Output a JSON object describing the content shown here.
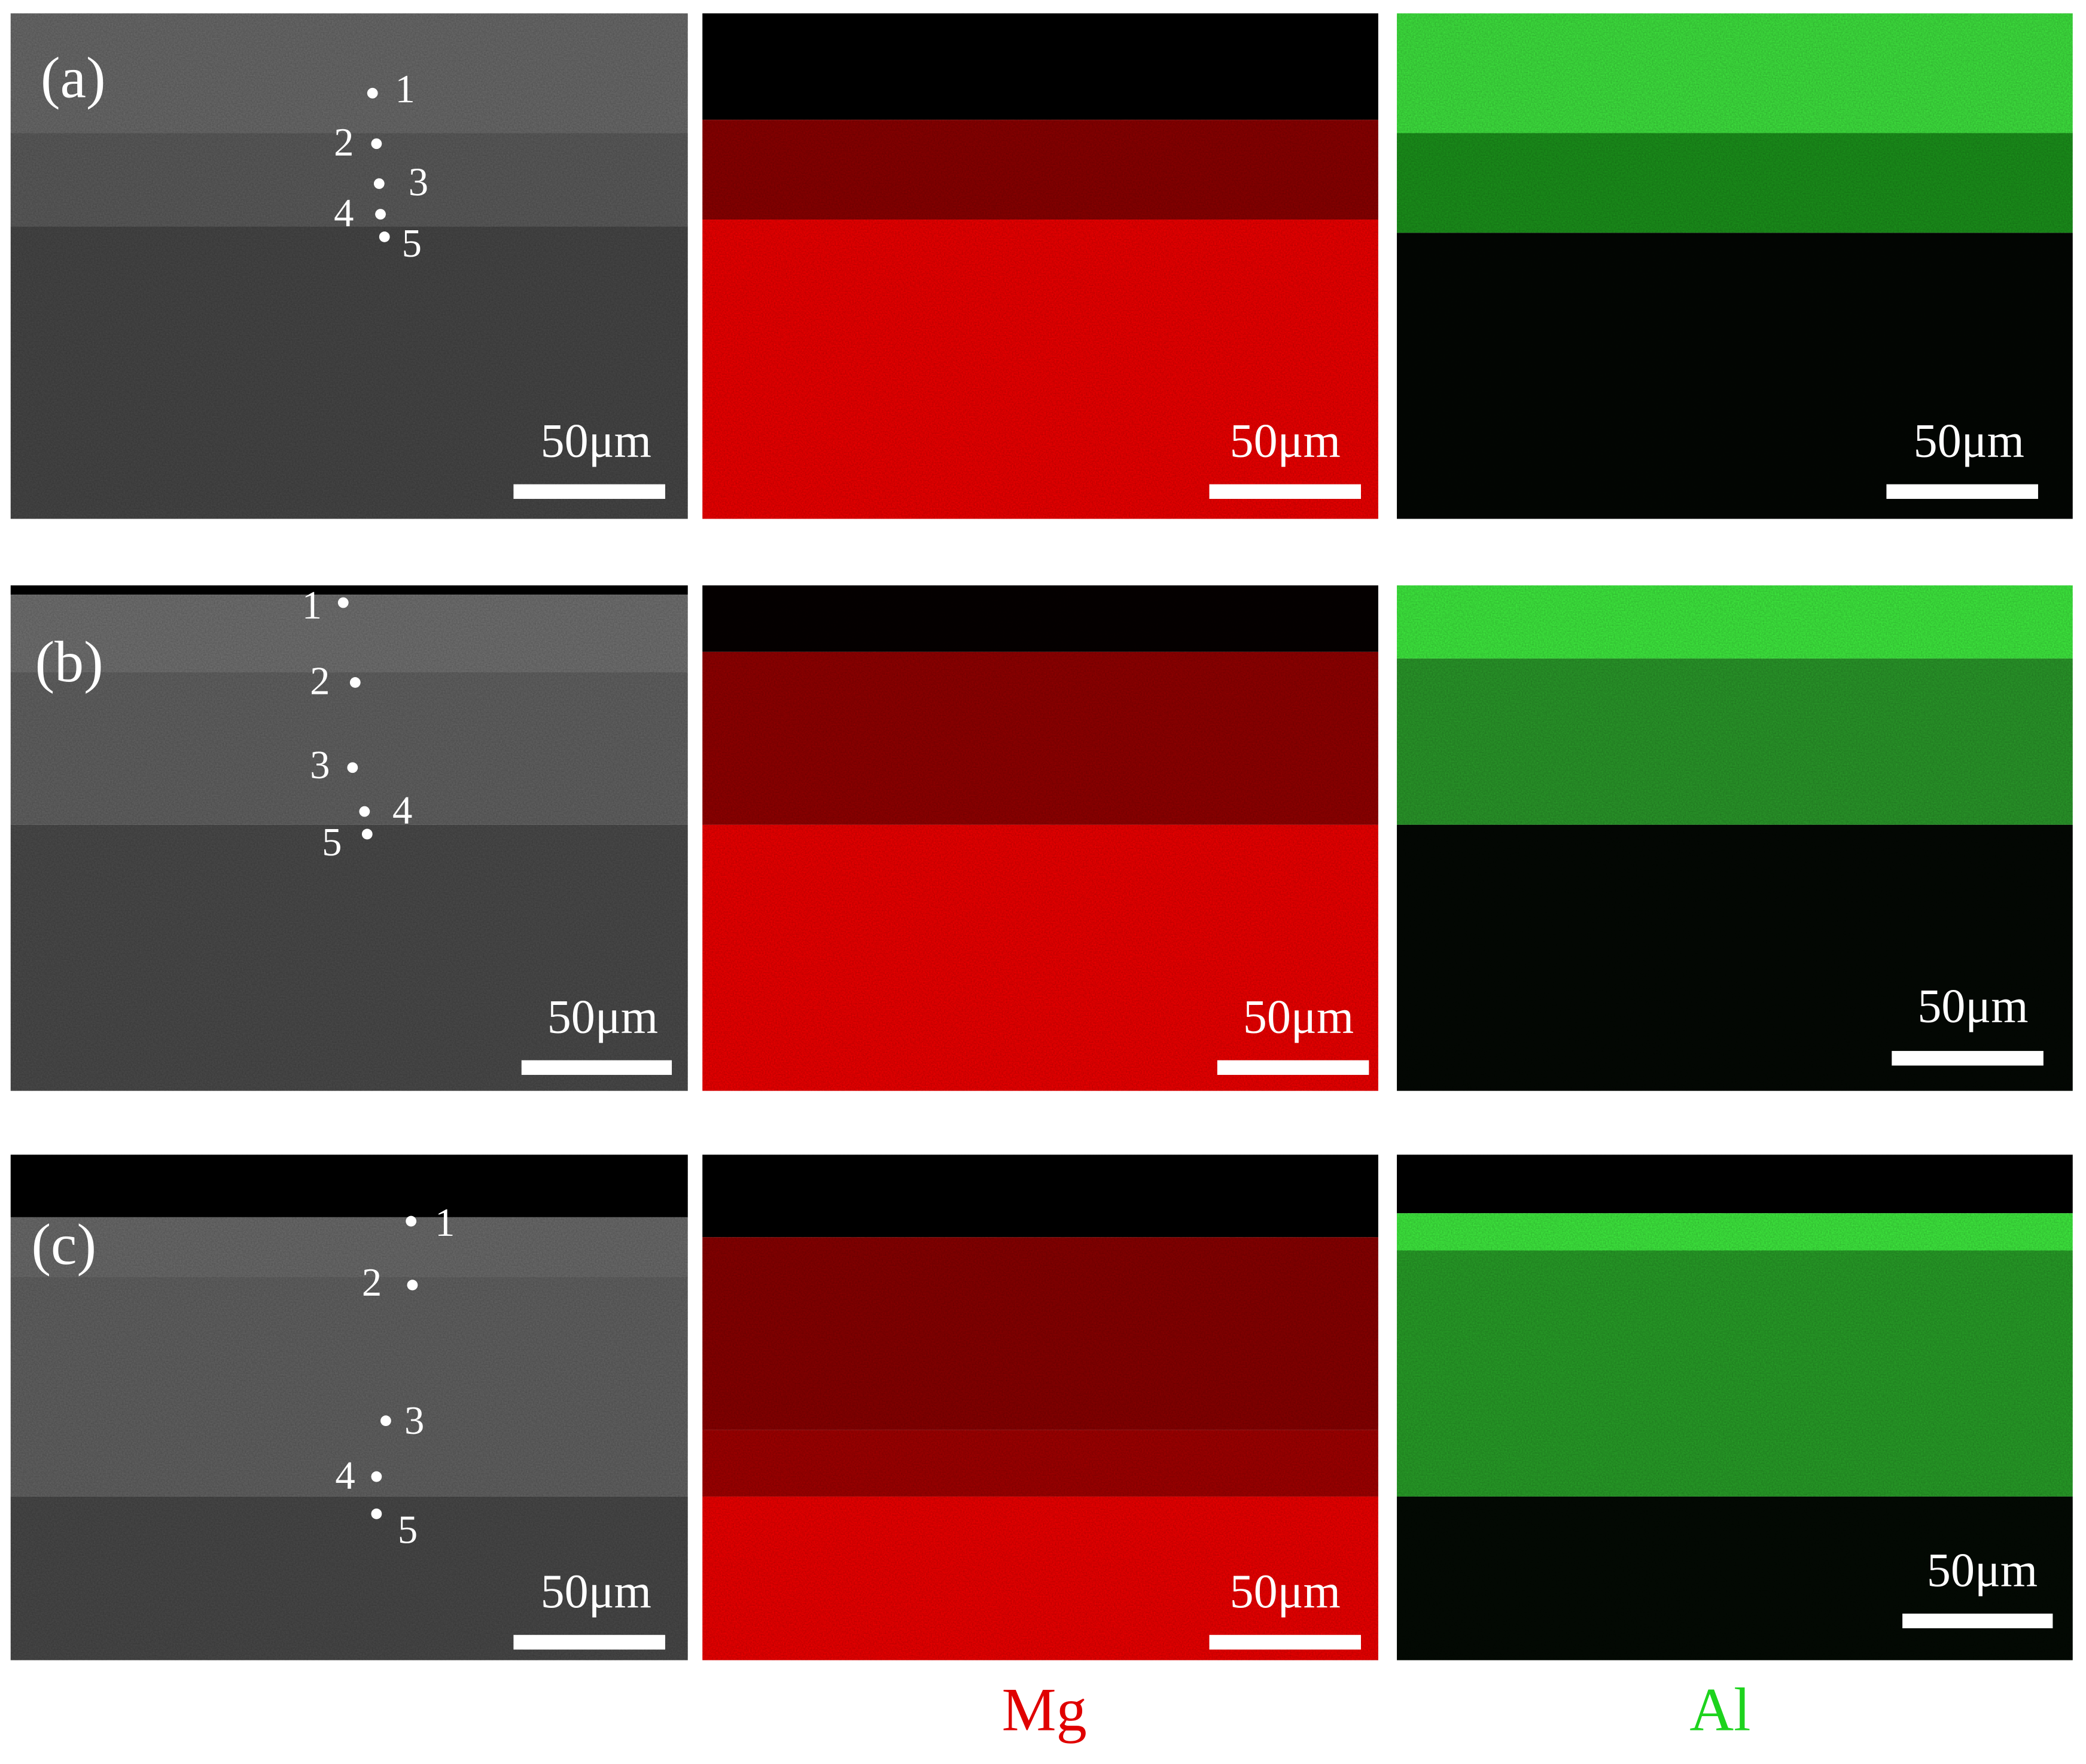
{
  "panels": [
    {
      "label": "(a)",
      "points": [
        "1",
        "2",
        "3",
        "4",
        "5"
      ],
      "scale_bars": [
        "50μm",
        "50μm",
        "50μm"
      ]
    },
    {
      "label": "(b)",
      "points": [
        "1",
        "2",
        "3",
        "4",
        "5"
      ],
      "scale_bars": [
        "50μm",
        "50μm",
        "50μm"
      ]
    },
    {
      "label": "(c)",
      "points": [
        "1",
        "2",
        "3",
        "4",
        "5"
      ],
      "scale_bars": [
        "50μm",
        "50μm",
        "50μm"
      ]
    }
  ],
  "element_labels": [
    "Mg",
    "Al"
  ]
}
